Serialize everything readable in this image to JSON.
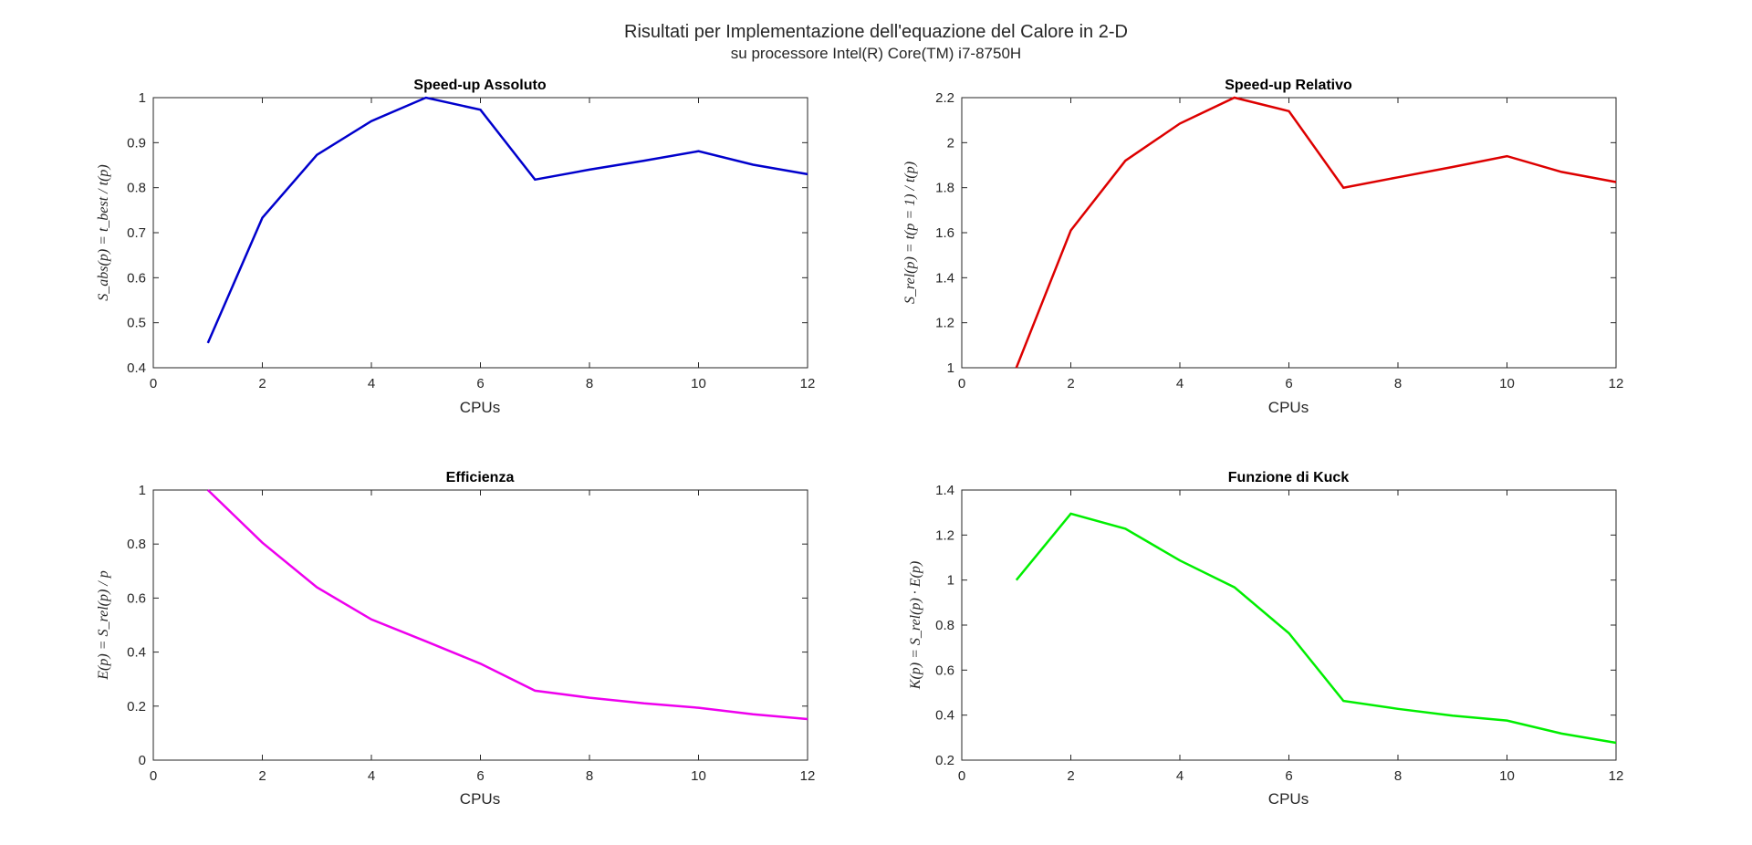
{
  "figure": {
    "title": "Risultati per Implementazione dell'equazione del Calore in 2-D",
    "subtitle": "su processore Intel(R) Core(TM) i7-8750H"
  },
  "chart_data": [
    {
      "type": "line",
      "title": "Speed-up Assoluto",
      "xlabel": "CPUs",
      "ylabel": "S_abs(p) = t_best / t(p)",
      "xlim": [
        0,
        12
      ],
      "ylim": [
        0.4,
        1
      ],
      "xticks": [
        0,
        2,
        4,
        6,
        8,
        10,
        12
      ],
      "yticks": [
        0.4,
        0.5,
        0.6,
        0.7,
        0.8,
        0.9,
        1
      ],
      "color": "#0000CC",
      "x": [
        1,
        2,
        3,
        4,
        5,
        6,
        7,
        8,
        9,
        10,
        11,
        12
      ],
      "values": [
        0.455,
        0.733,
        0.873,
        0.948,
        1.0,
        0.973,
        0.818,
        0.84,
        0.86,
        0.881,
        0.851,
        0.83
      ]
    },
    {
      "type": "line",
      "title": "Speed-up Relativo",
      "xlabel": "CPUs",
      "ylabel": "S_rel(p) = t(p = 1) / t(p)",
      "xlim": [
        0,
        12
      ],
      "ylim": [
        1,
        2.2
      ],
      "xticks": [
        0,
        2,
        4,
        6,
        8,
        10,
        12
      ],
      "yticks": [
        1,
        1.2,
        1.4,
        1.6,
        1.8,
        2,
        2.2
      ],
      "color": "#DD0000",
      "x": [
        1,
        2,
        3,
        4,
        5,
        6,
        7,
        8,
        9,
        10,
        11,
        12
      ],
      "values": [
        1.0,
        1.61,
        1.92,
        2.085,
        2.2,
        2.14,
        1.8,
        1.846,
        1.892,
        1.94,
        1.87,
        1.825
      ]
    },
    {
      "type": "line",
      "title": "Efficienza",
      "xlabel": "CPUs",
      "ylabel": "E(p) = S_rel(p) / p",
      "xlim": [
        0,
        12
      ],
      "ylim": [
        0,
        1
      ],
      "xticks": [
        0,
        2,
        4,
        6,
        8,
        10,
        12
      ],
      "yticks": [
        0,
        0.2,
        0.4,
        0.6,
        0.8,
        1
      ],
      "color": "#EE00EE",
      "x": [
        1,
        2,
        3,
        4,
        5,
        6,
        7,
        8,
        9,
        10,
        11,
        12
      ],
      "values": [
        1.0,
        0.805,
        0.64,
        0.521,
        0.44,
        0.357,
        0.257,
        0.231,
        0.21,
        0.194,
        0.17,
        0.152
      ]
    },
    {
      "type": "line",
      "title": "Funzione di Kuck",
      "xlabel": "CPUs",
      "ylabel": "K(p) = S_rel(p) · E(p)",
      "xlim": [
        0,
        12
      ],
      "ylim": [
        0.2,
        1.4
      ],
      "xticks": [
        0,
        2,
        4,
        6,
        8,
        10,
        12
      ],
      "yticks": [
        0.2,
        0.4,
        0.6,
        0.8,
        1,
        1.2,
        1.4
      ],
      "color": "#00EE00",
      "x": [
        1,
        2,
        3,
        4,
        5,
        6,
        7,
        8,
        9,
        10,
        11,
        12
      ],
      "values": [
        1.0,
        1.295,
        1.228,
        1.087,
        0.968,
        0.764,
        0.463,
        0.428,
        0.398,
        0.376,
        0.318,
        0.277
      ]
    }
  ]
}
